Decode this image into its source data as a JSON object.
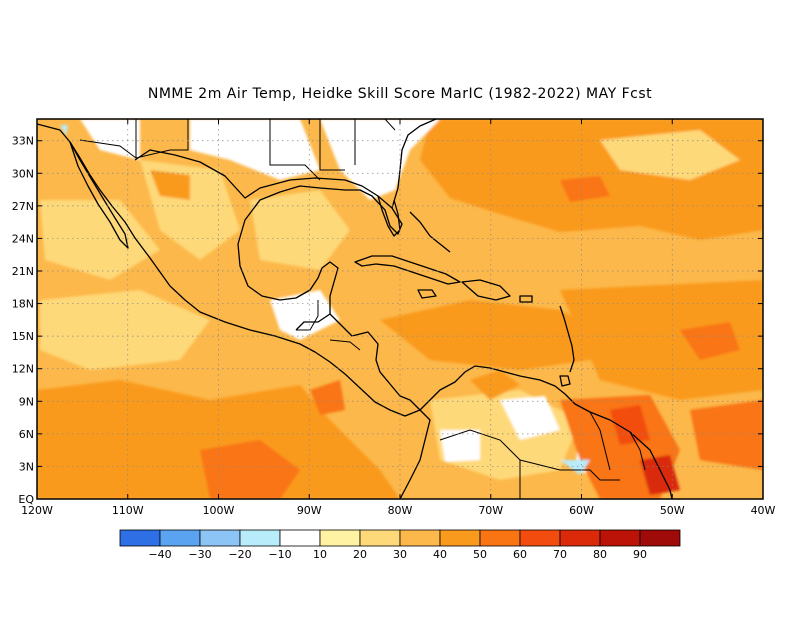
{
  "title": "NMME  2m Air Temp, Heidke Skill Score MarIC (1982-2022) MAY Fcst",
  "map": {
    "lon_range": [
      -120,
      -40
    ],
    "lat_range": [
      0,
      35
    ],
    "lat_tick_labels": [
      "EQ",
      "3N",
      "6N",
      "9N",
      "12N",
      "15N",
      "18N",
      "21N",
      "24N",
      "27N",
      "30N",
      "33N"
    ],
    "lon_tick_labels": [
      "120W",
      "110W",
      "100W",
      "90W",
      "80W",
      "70W",
      "60W",
      "50W",
      "40W"
    ],
    "grid": true,
    "grid_style": "dotted"
  },
  "colorbar": {
    "colors": [
      "#2e6fe6",
      "#5aa3f0",
      "#8cc4f5",
      "#b8ecfa",
      "#ffffff",
      "#fff3a3",
      "#fed979",
      "#fcb84a",
      "#fa9a1c",
      "#f97412",
      "#f24d0e",
      "#da2a09",
      "#bb1307",
      "#9e0b08"
    ],
    "labels": [
      "-40",
      "-30",
      "-20",
      "-10",
      "10",
      "20",
      "30",
      "40",
      "50",
      "60",
      "70",
      "80",
      "90"
    ]
  },
  "colors": {
    "land_outline": "#000000",
    "frame": "#000000",
    "grid": "#888888"
  }
}
